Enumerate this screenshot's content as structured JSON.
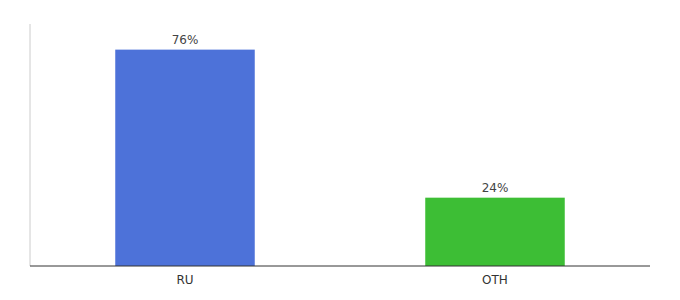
{
  "chart_data": {
    "type": "bar",
    "categories": [
      "RU",
      "OTH"
    ],
    "values": [
      76,
      24
    ],
    "value_labels": [
      "76%",
      "24%"
    ],
    "colors": [
      "#4d72d9",
      "#3dbe35"
    ],
    "ylim": [
      0,
      85
    ],
    "data_labels": true,
    "tick_labels": "x"
  }
}
